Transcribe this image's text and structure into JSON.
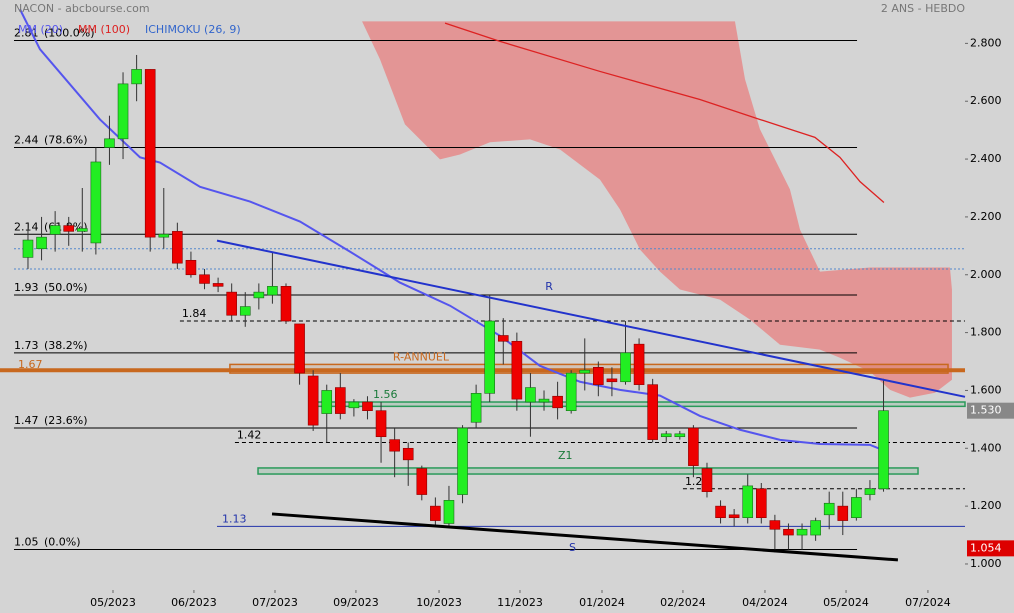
{
  "chart_data": {
    "type": "candlestick",
    "title": "NACON - abcbourse.com",
    "subtitle": "2 ANS - HEBDO",
    "xlim": [
      -2.06,
      69.0
    ],
    "ylim": [
      0.91,
      2.95
    ],
    "xticks": [
      {
        "value": 6.26,
        "label": "05/2023"
      },
      {
        "value": 12.22,
        "label": "06/2023"
      },
      {
        "value": 18.19,
        "label": "07/2023"
      },
      {
        "value": 24.15,
        "label": "09/2023"
      },
      {
        "value": 30.27,
        "label": "10/2023"
      },
      {
        "value": 36.23,
        "label": "11/2023"
      },
      {
        "value": 42.27,
        "label": "01/2024"
      },
      {
        "value": 48.23,
        "label": "02/2024"
      },
      {
        "value": 54.27,
        "label": "04/2024"
      },
      {
        "value": 60.24,
        "label": "05/2024"
      },
      {
        "value": 66.27,
        "label": "07/2024"
      }
    ],
    "yticks": [
      {
        "value": 2.8,
        "label": "2.800"
      },
      {
        "value": 2.6,
        "label": "2.600"
      },
      {
        "value": 2.4,
        "label": "2.400"
      },
      {
        "value": 2.2,
        "label": "2.200"
      },
      {
        "value": 2.0,
        "label": "2.000"
      },
      {
        "value": 1.8,
        "label": "1.800"
      },
      {
        "value": 1.6,
        "label": "1.600"
      },
      {
        "value": 1.4,
        "label": "1.400"
      },
      {
        "value": 1.2,
        "label": "1.200"
      },
      {
        "value": 1.0,
        "label": "1.000"
      }
    ],
    "up_color": "#22ee22",
    "down_color": "#ee0000",
    "candles": {
      "open": [
        2.06,
        2.09,
        2.14,
        2.17,
        2.15,
        2.11,
        2.44,
        2.47,
        2.66,
        2.71,
        2.13,
        2.15,
        2.05,
        2.0,
        1.97,
        1.94,
        1.86,
        1.92,
        1.93,
        1.96,
        1.83,
        1.65,
        1.52,
        1.61,
        1.54,
        1.56,
        1.53,
        1.43,
        1.4,
        1.33,
        1.2,
        1.14,
        1.24,
        1.49,
        1.59,
        1.79,
        1.77,
        1.56,
        1.56,
        1.58,
        1.53,
        1.66,
        1.68,
        1.64,
        1.63,
        1.76,
        1.62,
        1.44,
        1.44,
        1.47,
        1.33,
        1.2,
        1.17,
        1.16,
        1.26,
        1.15,
        1.12,
        1.1,
        1.1,
        1.17,
        1.2,
        1.16,
        1.24,
        1.26
      ],
      "high": [
        2.16,
        2.2,
        2.22,
        2.2,
        2.3,
        2.44,
        2.55,
        2.7,
        2.76,
        2.71,
        2.3,
        2.18,
        2.08,
        2.02,
        1.99,
        1.97,
        1.94,
        1.97,
        2.08,
        1.97,
        1.83,
        1.67,
        1.62,
        1.66,
        1.57,
        1.58,
        1.56,
        1.47,
        1.42,
        1.34,
        1.23,
        1.27,
        1.48,
        1.62,
        1.93,
        1.85,
        1.8,
        1.66,
        1.6,
        1.63,
        1.67,
        1.78,
        1.7,
        1.68,
        1.84,
        1.78,
        1.64,
        1.46,
        1.46,
        1.48,
        1.35,
        1.22,
        1.19,
        1.31,
        1.28,
        1.17,
        1.14,
        1.14,
        1.16,
        1.25,
        1.25,
        1.26,
        1.29,
        1.64
      ],
      "low": [
        2.02,
        2.05,
        2.08,
        2.1,
        2.08,
        2.07,
        2.38,
        2.4,
        2.6,
        2.08,
        2.09,
        2.02,
        1.99,
        1.95,
        1.94,
        1.84,
        1.82,
        1.88,
        1.9,
        1.83,
        1.62,
        1.46,
        1.42,
        1.5,
        1.51,
        1.5,
        1.35,
        1.3,
        1.27,
        1.22,
        1.13,
        1.13,
        1.21,
        1.47,
        1.56,
        1.69,
        1.53,
        1.44,
        1.53,
        1.5,
        1.52,
        1.6,
        1.58,
        1.58,
        1.62,
        1.6,
        1.42,
        1.42,
        1.43,
        1.3,
        1.23,
        1.14,
        1.13,
        1.14,
        1.14,
        1.04,
        1.05,
        1.05,
        1.08,
        1.12,
        1.1,
        1.15,
        1.22,
        1.25
      ],
      "close": [
        2.12,
        2.13,
        2.17,
        2.15,
        2.16,
        2.39,
        2.47,
        2.66,
        2.71,
        2.13,
        2.14,
        2.04,
        2.0,
        1.97,
        1.96,
        1.86,
        1.89,
        1.94,
        1.96,
        1.84,
        1.66,
        1.48,
        1.6,
        1.52,
        1.56,
        1.53,
        1.44,
        1.39,
        1.36,
        1.24,
        1.15,
        1.22,
        1.47,
        1.59,
        1.84,
        1.77,
        1.57,
        1.61,
        1.57,
        1.54,
        1.66,
        1.67,
        1.62,
        1.63,
        1.73,
        1.62,
        1.43,
        1.45,
        1.45,
        1.34,
        1.25,
        1.16,
        1.16,
        1.27,
        1.16,
        1.12,
        1.1,
        1.12,
        1.15,
        1.21,
        1.15,
        1.23,
        1.26,
        1.53
      ]
    },
    "series": [
      {
        "name": "MM (20)",
        "color": "#5555ee",
        "x": [
          -0.59,
          0.88,
          5.3,
          8.25,
          9.72,
          12.67,
          16.35,
          20.03,
          23.71,
          27.39,
          31.08,
          34.76,
          37.7,
          40.65,
          43.59,
          46.54,
          49.48,
          52.43,
          55.38,
          58.32,
          62.0,
          62.89
        ],
        "values": [
          2.918,
          2.78,
          2.537,
          2.406,
          2.388,
          2.304,
          2.253,
          2.184,
          2.08,
          1.973,
          1.893,
          1.789,
          1.685,
          1.63,
          1.602,
          1.582,
          1.512,
          1.464,
          1.429,
          1.415,
          1.412,
          1.395
        ]
      },
      {
        "name": "MM (100)",
        "color": "#dd2222",
        "x": [
          30.71,
          34.76,
          42.12,
          49.48,
          53.9,
          57.95,
          59.79,
          61.27,
          63.03
        ],
        "values": [
          2.87,
          2.807,
          2.703,
          2.606,
          2.537,
          2.475,
          2.406,
          2.322,
          2.25
        ]
      }
    ],
    "ichimoku": {
      "name": "ICHIMOKU (26, 9)",
      "color": "#e88080",
      "legend_color": "#3366cc",
      "upper": {
        "x": [
          24.6,
          52.06,
          52.8,
          53.9,
          56.11,
          56.85,
          58.32,
          62.0,
          67.89,
          68.04
        ],
        "values": [
          2.876,
          2.876,
          2.676,
          2.503,
          2.295,
          2.156,
          2.011,
          2.025,
          2.025,
          1.949
        ]
      },
      "lower": {
        "x": [
          24.6,
          25.92,
          27.76,
          30.34,
          31.81,
          34.02,
          36.97,
          39.18,
          42.12,
          43.59,
          45.07,
          46.54,
          48.01,
          50.96,
          53.17,
          55.38,
          58.32,
          59.79,
          62.0,
          63.48,
          64.95,
          66.79,
          68.04
        ],
        "values": [
          2.876,
          2.745,
          2.52,
          2.399,
          2.416,
          2.458,
          2.468,
          2.433,
          2.329,
          2.226,
          2.087,
          2.011,
          1.949,
          1.914,
          1.845,
          1.758,
          1.741,
          1.713,
          1.665,
          1.602,
          1.575,
          1.592,
          1.637
        ]
      }
    },
    "fib_levels": [
      {
        "price": 2.81,
        "pct": "(100.0%)"
      },
      {
        "price": 2.44,
        "pct": "(78.6%)"
      },
      {
        "price": 2.14,
        "pct": "(61.8%)"
      },
      {
        "price": 1.93,
        "pct": "(50.0%)"
      },
      {
        "price": 1.73,
        "pct": "(38.2%)"
      },
      {
        "price": 1.47,
        "pct": "(23.6%)"
      },
      {
        "price": 1.05,
        "pct": "(0.0%)"
      }
    ],
    "fib_x": [
      -1.03,
      61.05
    ],
    "dashed_levels": [
      {
        "price": 1.84,
        "from": 11.19,
        "color": "#000000"
      },
      {
        "price": 1.42,
        "from": 15.24,
        "color": "#000000"
      },
      {
        "price": 1.26,
        "from": 48.23,
        "color": "#000000"
      }
    ],
    "support_level": {
      "price": 1.13,
      "from": 13.92,
      "color": "#2233aa"
    },
    "band": {
      "values": [
        2.09,
        2.02
      ],
      "color": "#5588cc"
    },
    "annual_line": {
      "price": 1.67,
      "color": "#c8681e"
    },
    "zones": [
      {
        "name": "R-ANNUEL",
        "x": [
          14.87,
          67.75
        ],
        "range": [
          1.66,
          1.69
        ],
        "color": "#c8681e"
      },
      {
        "price": 1.56,
        "x": [
          20.99,
          69.0
        ],
        "range": [
          1.545,
          1.56
        ],
        "color": "#2a9a5a"
      },
      {
        "name": "Z1",
        "x": [
          16.94,
          65.54
        ],
        "range": [
          1.311,
          1.332
        ],
        "color": "#2a9a5a"
      }
    ],
    "trendlines": [
      {
        "name": "R",
        "x": [
          13.92,
          69.0
        ],
        "values": [
          2.118,
          1.578
        ],
        "color": "#2233cc"
      },
      {
        "name": "S",
        "x": [
          17.97,
          64.06
        ],
        "values": [
          1.173,
          1.014
        ],
        "color": "#000000"
      }
    ],
    "price_tags": [
      {
        "value": 1.53,
        "label": "1.530",
        "color": "#888888"
      },
      {
        "value": 1.054,
        "label": "1.054",
        "color": "#dd0000"
      }
    ]
  }
}
